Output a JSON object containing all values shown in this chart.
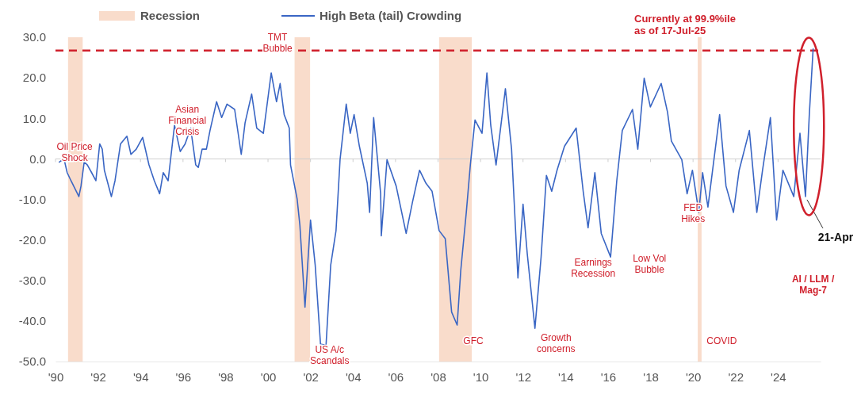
{
  "chart_data": {
    "type": "line",
    "x": [
      1990.18,
      1990.4,
      1990.55,
      1990.73,
      1990.98,
      1991.1,
      1991.2,
      1991.35,
      1991.5,
      1991.7,
      1991.9,
      1992.08,
      1992.2,
      1992.3,
      1992.63,
      1992.8,
      1993.06,
      1993.36,
      1993.55,
      1993.8,
      1994.1,
      1994.4,
      1994.65,
      1994.9,
      1995.07,
      1995.3,
      1995.6,
      1995.87,
      1996.1,
      1996.36,
      1996.6,
      1996.72,
      1996.9,
      1997.1,
      1997.27,
      1997.58,
      1997.82,
      1998.07,
      1998.43,
      1998.74,
      1998.92,
      1999.23,
      1999.47,
      1999.78,
      2000.15,
      2000.4,
      2000.57,
      2000.76,
      2001.0,
      2001.06,
      2001.37,
      2001.5,
      2001.74,
      2002.0,
      2002.22,
      2002.47,
      2002.73,
      2002.95,
      2003.2,
      2003.39,
      2003.68,
      2003.87,
      2004.05,
      2004.3,
      2004.67,
      2004.78,
      2004.97,
      2005.3,
      2005.33,
      2005.6,
      2006.03,
      2006.5,
      2006.8,
      2007.13,
      2007.43,
      2007.72,
      2008.05,
      2008.34,
      2008.64,
      2008.9,
      2009.07,
      2009.33,
      2009.52,
      2009.74,
      2010.07,
      2010.3,
      2010.48,
      2010.73,
      2011.17,
      2011.46,
      2011.76,
      2012.0,
      2012.2,
      2012.56,
      2012.85,
      2013.1,
      2013.35,
      2013.6,
      2013.95,
      2014.5,
      2014.83,
      2015.06,
      2015.38,
      2015.68,
      2016.12,
      2016.41,
      2016.67,
      2017.15,
      2017.4,
      2017.7,
      2017.99,
      2018.5,
      2018.8,
      2018.98,
      2019.47,
      2019.72,
      2019.97,
      2020.27,
      2020.45,
      2020.7,
      2021.25,
      2021.55,
      2021.9,
      2022.17,
      2022.65,
      2023.0,
      2023.27,
      2023.64,
      2023.93,
      2024.23,
      2024.74,
      2025.03,
      2025.29,
      2025.47,
      2025.65
    ],
    "series": [
      {
        "name": "High Beta (tail) Crowding",
        "color": "#3a66c4",
        "values": [
          -0.8,
          0,
          -3.4,
          -5.4,
          -8,
          -9.3,
          -6.7,
          -0.8,
          -1.5,
          -3.4,
          -5.4,
          3.7,
          2.4,
          -2.8,
          -9.3,
          -5.4,
          3.7,
          5.6,
          1.1,
          2.4,
          5.3,
          -1.5,
          -5.4,
          -8.6,
          -3.4,
          -5.4,
          8.3,
          1.8,
          3.7,
          7.6,
          -1.5,
          -2.1,
          2.4,
          2.4,
          7,
          14.1,
          10.2,
          13.5,
          12.2,
          1.1,
          8.9,
          16,
          7.6,
          6.3,
          21.2,
          14.1,
          18.6,
          10.9,
          7.6,
          -1.5,
          -9.9,
          -16.4,
          -36.6,
          -15.1,
          -26.2,
          -45.7,
          -46,
          -26.2,
          -17.7,
          -0.2,
          13.5,
          6.3,
          10.9,
          3.1,
          -6,
          -13.2,
          10.2,
          -8.6,
          -19,
          -0.2,
          -6.7,
          -18.4,
          -10.6,
          -2.8,
          -6,
          -8,
          -17.7,
          -19.7,
          -37.8,
          -41,
          -27.5,
          -13.2,
          -1.5,
          9.6,
          6.3,
          21.2,
          8.3,
          -1.5,
          17.3,
          2.4,
          -29.4,
          -11.2,
          -23.5,
          -41.8,
          -24.2,
          -4.1,
          -8,
          -2.8,
          3.1,
          7.6,
          -8,
          -17,
          -3.4,
          -18.4,
          -24.2,
          -5.4,
          7,
          12.2,
          2.4,
          19.9,
          12.8,
          18.6,
          11.5,
          4.4,
          -0.2,
          -8.6,
          -2.8,
          -13.2,
          -3.4,
          -11.9,
          10.9,
          -6.7,
          -13.2,
          -2.8,
          7,
          -13.2,
          -2.8,
          10.2,
          -15.1,
          -2.8,
          -9.3,
          6.3,
          -9.3,
          10.9,
          27.1
        ]
      }
    ],
    "xlim": [
      1990,
      2026
    ],
    "xticks": [
      {
        "value": 1990,
        "label": "'90"
      },
      {
        "value": 1992,
        "label": "'92"
      },
      {
        "value": 1994,
        "label": "'94"
      },
      {
        "value": 1996,
        "label": "'96"
      },
      {
        "value": 1998,
        "label": "'98"
      },
      {
        "value": 2000,
        "label": "'00"
      },
      {
        "value": 2002,
        "label": "'02"
      },
      {
        "value": 2004,
        "label": "'04"
      },
      {
        "value": 2006,
        "label": "'06"
      },
      {
        "value": 2008,
        "label": "'08"
      },
      {
        "value": 2010,
        "label": "'10"
      },
      {
        "value": 2012,
        "label": "'12"
      },
      {
        "value": 2014,
        "label": "'14"
      },
      {
        "value": 2016,
        "label": "'16"
      },
      {
        "value": 2018,
        "label": "'18"
      },
      {
        "value": 2020,
        "label": "'20"
      },
      {
        "value": 2022,
        "label": "'22"
      },
      {
        "value": 2024,
        "label": "'24"
      }
    ],
    "ylim": [
      -50,
      30
    ],
    "yticks": [
      {
        "value": -50,
        "label": "-50.0"
      },
      {
        "value": -40,
        "label": "-40.0"
      },
      {
        "value": -30,
        "label": "-30.0"
      },
      {
        "value": -20,
        "label": "-20.0"
      },
      {
        "value": -10,
        "label": "-10.0"
      },
      {
        "value": 0,
        "label": "0.0"
      },
      {
        "value": 10,
        "label": "10.0"
      },
      {
        "value": 20,
        "label": "20.0"
      },
      {
        "value": 30,
        "label": "30.0"
      }
    ],
    "bands": [
      {
        "axis": "x",
        "from": 1990.59,
        "to": 1991.28,
        "label": "Recession",
        "color": "#f9dccb"
      },
      {
        "axis": "x",
        "from": 2001.25,
        "to": 2001.98,
        "color": "#f9dccb"
      },
      {
        "axis": "x",
        "from": 2008.05,
        "to": 2009.59,
        "color": "#f9dccb"
      },
      {
        "axis": "x",
        "from": 2020.22,
        "to": 2020.4,
        "color": "#f9dccb"
      }
    ],
    "ref_lines": [
      {
        "axis": "y",
        "value": 0,
        "color": "#cfcfcf",
        "line_style": "solid"
      },
      {
        "axis": "y",
        "value": 26.7,
        "label": "Currently at 99.9%ile\nas of 17-Jul-25",
        "color": "#d0202c",
        "line_style": "dashed"
      }
    ],
    "annotations": [
      "Oil Price\nShock",
      "Asian\nFinancial\nCrisis",
      "TMT\nBubble",
      "US A/c\nScandals",
      "GFC",
      "Growth\nconcerns",
      "Earnings\nRecession",
      "Low Vol\nBubble",
      "FED\nHikes",
      "COVID",
      "AI / LLM /\nMag-7",
      {
        "text": "21-Apr",
        "x": 2025.29,
        "y": -9.3
      }
    ],
    "legend": "top",
    "marker": "none",
    "line_style": "solid",
    "grid": false
  }
}
